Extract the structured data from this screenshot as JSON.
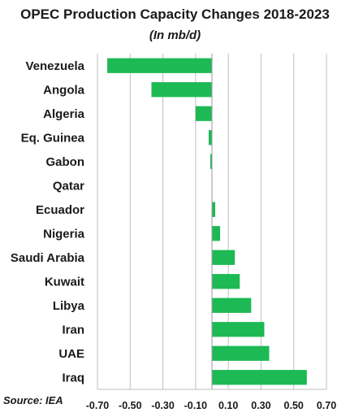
{
  "chart_data": {
    "type": "bar",
    "orientation": "horizontal",
    "title": "OPEC Production Capacity Changes 2018-2023",
    "subtitle": "(In mb/d)",
    "source": "Source: IEA",
    "categories": [
      "Venezuela",
      "Angola",
      "Algeria",
      "Eq. Guinea",
      "Gabon",
      "Qatar",
      "Ecuador",
      "Nigeria",
      "Saudi Arabia",
      "Kuwait",
      "Libya",
      "Iran",
      "UAE",
      "Iraq"
    ],
    "values": [
      -0.64,
      -0.37,
      -0.1,
      -0.02,
      -0.01,
      0.0,
      0.02,
      0.05,
      0.14,
      0.17,
      0.24,
      0.32,
      0.35,
      0.58
    ],
    "xlim": [
      -0.7,
      0.7
    ],
    "xticks": [
      "-0.70",
      "-0.50",
      "-0.30",
      "-0.10",
      "0.10",
      "0.30",
      "0.50",
      "0.70"
    ],
    "xtick_values": [
      -0.7,
      -0.5,
      -0.3,
      -0.1,
      0.1,
      0.3,
      0.5,
      0.7
    ],
    "grid": true,
    "bar_color": "#1db954",
    "grid_color": "#bfbfbf"
  }
}
